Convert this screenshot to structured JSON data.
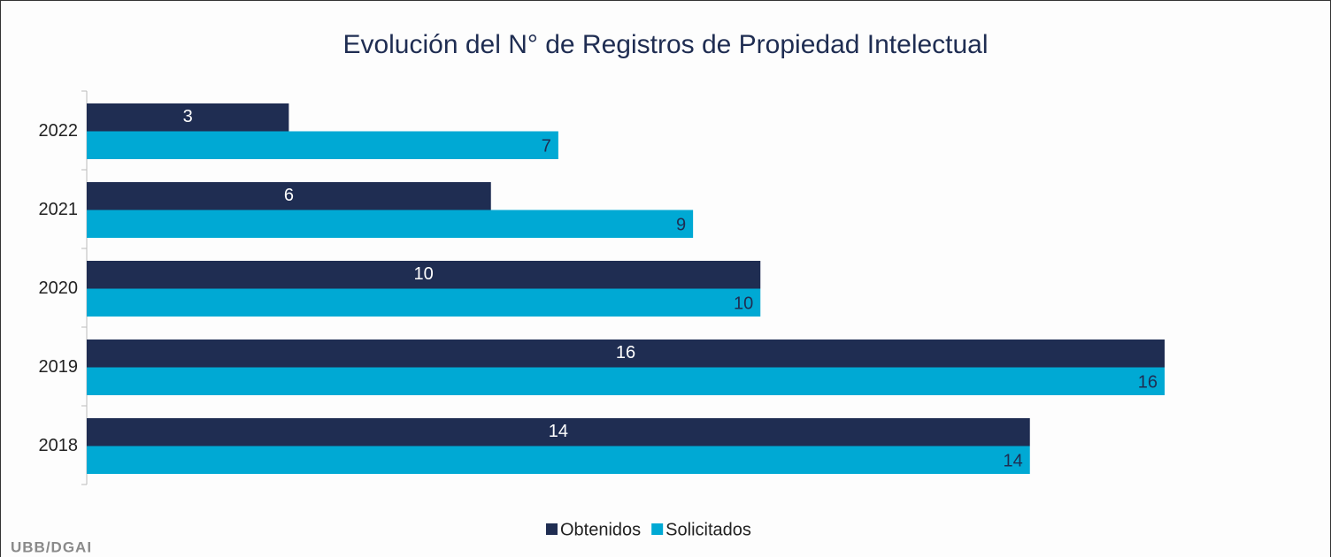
{
  "chart_data": {
    "type": "hbar",
    "title": "Evolución del N° de Registros de Propiedad Intelectual",
    "categories": [
      "2022",
      "2021",
      "2020",
      "2019",
      "2018"
    ],
    "series": [
      {
        "name": "Obtenidos",
        "color": "#1f2d52",
        "values": [
          3,
          6,
          10,
          16,
          14
        ]
      },
      {
        "name": "Solicitados",
        "color": "#00a9d4",
        "values": [
          7,
          9,
          10,
          16,
          14
        ]
      }
    ],
    "legend": "bottom",
    "footer": "UBB/DGAI"
  }
}
